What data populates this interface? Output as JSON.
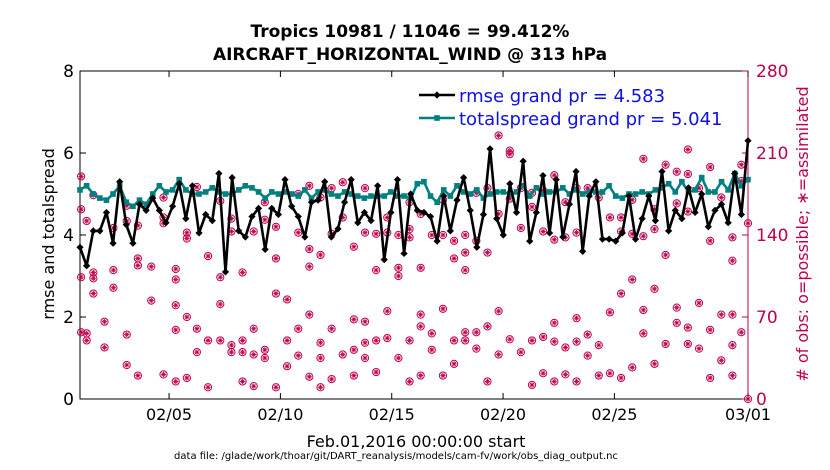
{
  "chart_data": {
    "type": "line",
    "title_line1": "Tropics 10981 / 11046 = 99.412%",
    "title_line2": "AIRCRAFT_HORIZONTAL_WIND @ 313 hPa",
    "xlabel": "Feb.01,2016 00:00:00 start",
    "ylabel_left": "rmse and totalspread",
    "ylabel_right": "# of obs: o=possible; ∗=assimilated",
    "footer": "data file: /glade/work/thoar/git/DART_reanalysis/models/cam-fv/work/obs_diag_output.nc",
    "xlim": [
      1,
      31
    ],
    "ylim_left": [
      0,
      8
    ],
    "ylim_right": [
      0,
      280
    ],
    "x_ticks": [
      {
        "value": 5,
        "label": "02/05"
      },
      {
        "value": 10,
        "label": "02/10"
      },
      {
        "value": 15,
        "label": "02/15"
      },
      {
        "value": 20,
        "label": "02/20"
      },
      {
        "value": 25,
        "label": "02/25"
      },
      {
        "value": 31,
        "label": "03/01"
      }
    ],
    "y_ticks_left": [
      "0",
      "2",
      "4",
      "6",
      "8"
    ],
    "y_ticks_right": [
      "0",
      "70",
      "140",
      "210",
      "280"
    ],
    "colors": {
      "rmse": "#000000",
      "spread": "#008080",
      "obs": "#c0004e",
      "axis": "#000000",
      "right_axis": "#c0004e",
      "legend_text": "#1010e0"
    },
    "series": [
      {
        "name": "rmse",
        "legend": "rmse grand pr = 4.583",
        "values": [
          3.7,
          3.25,
          4.1,
          4.1,
          4.55,
          3.8,
          5.3,
          4.25,
          3.8,
          4.75,
          4.6,
          4.9,
          4.6,
          4.3,
          4.7,
          5.25,
          4.4,
          5.2,
          4.05,
          4.5,
          4.35,
          5.5,
          3.1,
          5.4,
          4.1,
          3.95,
          4.45,
          4.65,
          3.65,
          4.65,
          4.5,
          5.35,
          4.7,
          4.45,
          3.95,
          4.8,
          4.85,
          5.3,
          3.95,
          4.15,
          4.8,
          5.35,
          4.3,
          4.55,
          4.35,
          5.2,
          3.4,
          4.55,
          5.35,
          3.55,
          5.0,
          4.6,
          4.55,
          4.45,
          3.85,
          4.95,
          4.1,
          4.85,
          5.4,
          4.6,
          3.7,
          4.5,
          6.1,
          4.4,
          4.0,
          5.25,
          4.55,
          5.8,
          3.85,
          4.55,
          5.45,
          4.05,
          5.35,
          3.95,
          4.75,
          5.55,
          3.6,
          4.95,
          5.3,
          3.9,
          3.9,
          3.85,
          4.05,
          4.95,
          3.9,
          4.4,
          4.95,
          4.35,
          5.55,
          4.1,
          4.6,
          4.4,
          5.15,
          4.55,
          5.0,
          4.2,
          4.6,
          4.75,
          4.3,
          5.5,
          4.5,
          6.3
        ]
      },
      {
        "name": "totalspread",
        "legend": "totalspread grand pr = 5.041",
        "values": [
          5.1,
          5.2,
          5.0,
          4.9,
          4.85,
          5.0,
          5.2,
          4.8,
          4.7,
          4.85,
          4.75,
          5.0,
          5.2,
          5.05,
          5.1,
          5.35,
          5.1,
          5.0,
          5.0,
          5.05,
          5.15,
          5.05,
          5.0,
          5.0,
          5.1,
          5.2,
          5.15,
          5.05,
          4.9,
          5.05,
          5.0,
          5.05,
          5.0,
          4.95,
          5.1,
          4.9,
          5.05,
          5.1,
          5.0,
          4.95,
          5.05,
          5.0,
          4.95,
          4.9,
          4.95,
          4.95,
          4.95,
          5.05,
          4.95,
          4.95,
          4.9,
          5.25,
          5.3,
          4.95,
          4.8,
          5.1,
          4.95,
          5.2,
          5.05,
          5.0,
          5.1,
          4.9,
          5.0,
          5.05,
          5.05,
          5.0,
          5.05,
          5.2,
          4.95,
          5.15,
          5.0,
          5.05,
          5.05,
          5.15,
          5.0,
          5.1,
          5.0,
          5.05,
          5.05,
          5.05,
          5.2,
          4.95,
          4.9,
          5.0,
          5.0,
          5.05,
          5.0,
          5.1,
          5.15,
          5.25,
          5.05,
          5.3,
          5.05,
          5.1,
          5.4,
          5.05,
          5.05,
          5.3,
          5.1,
          5.5,
          5.2,
          5.35
        ]
      }
    ],
    "obs_counts": [
      {
        "x": 1.05,
        "values": [
          57,
          104,
          162,
          190
        ]
      },
      {
        "x": 1.3,
        "values": [
          50,
          56,
          152
        ]
      },
      {
        "x": 1.6,
        "values": [
          90,
          103,
          108,
          174
        ]
      },
      {
        "x": 2.1,
        "values": [
          44,
          66
        ]
      },
      {
        "x": 2.5,
        "values": [
          95,
          110,
          146
        ]
      },
      {
        "x": 3.1,
        "values": [
          29,
          55,
          152,
          165
        ]
      },
      {
        "x": 3.6,
        "values": [
          20,
          114,
          120,
          148
        ]
      },
      {
        "x": 4.2,
        "values": [
          84,
          113
        ]
      },
      {
        "x": 4.75,
        "values": [
          21,
          150,
          155,
          172
        ]
      },
      {
        "x": 5.3,
        "values": [
          15,
          59,
          80,
          102,
          111
        ]
      },
      {
        "x": 5.8,
        "values": [
          18,
          70,
          137,
          142
        ]
      },
      {
        "x": 6.25,
        "values": [
          40,
          60,
          181
        ]
      },
      {
        "x": 6.75,
        "values": [
          10,
          50,
          122
        ]
      },
      {
        "x": 7.3,
        "values": [
          50,
          81,
          104,
          169
        ]
      },
      {
        "x": 7.8,
        "values": [
          40,
          46,
          143,
          154
        ]
      },
      {
        "x": 8.3,
        "values": [
          15,
          40,
          50,
          108
        ]
      },
      {
        "x": 8.8,
        "values": [
          11,
          38,
          60,
          143
        ]
      },
      {
        "x": 9.3,
        "values": [
          35,
          42,
          153,
          168
        ]
      },
      {
        "x": 9.8,
        "values": [
          10,
          90,
          120,
          147
        ]
      },
      {
        "x": 10.3,
        "values": [
          28,
          50,
          85
        ]
      },
      {
        "x": 10.8,
        "values": [
          37,
          60,
          142,
          175
        ]
      },
      {
        "x": 11.3,
        "values": [
          19,
          72,
          113,
          128,
          182
        ]
      },
      {
        "x": 11.8,
        "values": [
          10,
          35,
          48,
          123,
          172
        ]
      },
      {
        "x": 12.3,
        "values": [
          17,
          60,
          141,
          180
        ]
      },
      {
        "x": 12.8,
        "values": [
          38,
          155,
          185
        ]
      },
      {
        "x": 13.3,
        "values": [
          20,
          42,
          68,
          130
        ]
      },
      {
        "x": 13.8,
        "values": [
          35,
          48,
          66,
          142,
          180
        ]
      },
      {
        "x": 14.3,
        "values": [
          23,
          50,
          110,
          141
        ]
      },
      {
        "x": 14.8,
        "values": [
          52,
          75,
          142,
          155
        ]
      },
      {
        "x": 15.3,
        "values": [
          35,
          105,
          112,
          140
        ]
      },
      {
        "x": 15.8,
        "values": [
          15,
          50,
          138,
          145,
          168
        ]
      },
      {
        "x": 16.3,
        "values": [
          20,
          62,
          72,
          112,
          158
        ]
      },
      {
        "x": 16.8,
        "values": [
          42,
          56,
          140
        ]
      },
      {
        "x": 17.3,
        "values": [
          20,
          77,
          140,
          170
        ]
      },
      {
        "x": 17.8,
        "values": [
          30,
          50,
          120,
          135
        ]
      },
      {
        "x": 18.3,
        "values": [
          50,
          57,
          110,
          125,
          140
        ]
      },
      {
        "x": 18.8,
        "values": [
          43,
          57,
          135,
          176
        ]
      },
      {
        "x": 19.3,
        "values": [
          15,
          62,
          125,
          180
        ]
      },
      {
        "x": 19.8,
        "values": [
          38,
          75,
          158,
          225
        ]
      },
      {
        "x": 20.3,
        "values": [
          51,
          171,
          209,
          212
        ]
      },
      {
        "x": 20.8,
        "values": [
          40,
          146,
          180
        ]
      },
      {
        "x": 21.3,
        "values": [
          12,
          50,
          164,
          176
        ]
      },
      {
        "x": 21.8,
        "values": [
          22,
          53,
          143,
          178
        ]
      },
      {
        "x": 22.3,
        "values": [
          15,
          49,
          65,
          136,
          191
        ]
      },
      {
        "x": 22.8,
        "values": [
          21,
          44,
          138,
          168
        ]
      },
      {
        "x": 23.3,
        "values": [
          15,
          49,
          69,
          142,
          180
        ]
      },
      {
        "x": 23.8,
        "values": [
          37,
          55,
          180
        ]
      },
      {
        "x": 24.3,
        "values": [
          20,
          46,
          172
        ]
      },
      {
        "x": 24.8,
        "values": [
          22,
          74,
          155
        ]
      },
      {
        "x": 25.3,
        "values": [
          18,
          90,
          143,
          155
        ]
      },
      {
        "x": 25.8,
        "values": [
          27,
          102,
          141,
          170
        ]
      },
      {
        "x": 26.3,
        "values": [
          56,
          76,
          139,
          205
        ]
      },
      {
        "x": 26.8,
        "values": [
          30,
          94,
          145,
          162
        ]
      },
      {
        "x": 27.3,
        "values": [
          47,
          123,
          200
        ]
      },
      {
        "x": 27.8,
        "values": [
          65,
          78,
          167,
          194
        ]
      },
      {
        "x": 28.3,
        "values": [
          47,
          61,
          160,
          192,
          213
        ]
      },
      {
        "x": 28.8,
        "values": [
          43,
          82,
          180
        ]
      },
      {
        "x": 29.3,
        "values": [
          18,
          59,
          135,
          198
        ]
      },
      {
        "x": 29.8,
        "values": [
          33,
          72,
          172
        ]
      },
      {
        "x": 30.3,
        "values": [
          20,
          46,
          72,
          118,
          138
        ]
      },
      {
        "x": 30.7,
        "values": [
          57,
          186,
          200
        ]
      },
      {
        "x": 31.0,
        "values": [
          0,
          150
        ]
      }
    ]
  }
}
